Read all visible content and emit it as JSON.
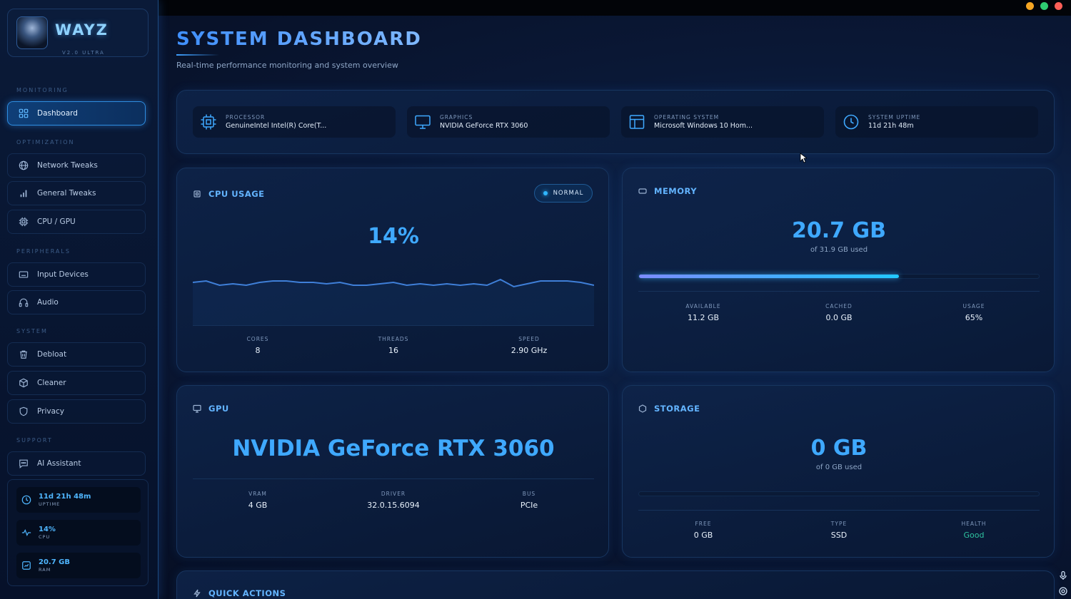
{
  "window": {
    "controls": {
      "minimize_color": "#f5a623",
      "maximize_color": "#2ecc71",
      "close_color": "#ff5f57"
    }
  },
  "brand": {
    "name": "WAYZ",
    "version": "V2.0 ULTRA",
    "accent": "#3fa9ff"
  },
  "sidebar": {
    "sections": {
      "monitoring": "MONITORING",
      "optimization": "OPTIMIZATION",
      "peripherals": "PERIPHERALS",
      "system": "SYSTEM",
      "support": "SUPPORT"
    },
    "items": [
      {
        "label": "Dashboard",
        "icon": "grid-icon",
        "active": true
      },
      {
        "label": "Network Tweaks",
        "icon": "globe-icon"
      },
      {
        "label": "General Tweaks",
        "icon": "bars-icon"
      },
      {
        "label": "CPU / GPU",
        "icon": "chip-icon"
      },
      {
        "label": "Input Devices",
        "icon": "keyboard-icon"
      },
      {
        "label": "Audio",
        "icon": "headphones-icon"
      },
      {
        "label": "Debloat",
        "icon": "trash-icon"
      },
      {
        "label": "Cleaner",
        "icon": "box-icon"
      },
      {
        "label": "Privacy",
        "icon": "shield-icon"
      },
      {
        "label": "AI Assistant",
        "icon": "chat-icon"
      }
    ],
    "stats": [
      {
        "value": "11d 21h 48m",
        "label": "UPTIME",
        "icon": "clock-icon"
      },
      {
        "value": "14%",
        "label": "CPU",
        "icon": "pulse-icon"
      },
      {
        "value": "20.7 GB",
        "label": "RAM",
        "icon": "memory-icon"
      }
    ]
  },
  "header": {
    "title": "SYSTEM DASHBOARD",
    "subtitle": "Real-time performance monitoring and system overview"
  },
  "system_info": [
    {
      "label": "PROCESSOR",
      "value": "GenuineIntel Intel(R) Core(T...",
      "icon": "chip-icon"
    },
    {
      "label": "GRAPHICS",
      "value": "NVIDIA GeForce RTX 3060",
      "icon": "monitor-icon"
    },
    {
      "label": "OPERATING SYSTEM",
      "value": "Microsoft Windows 10 Hom...",
      "icon": "window-icon"
    },
    {
      "label": "SYSTEM UPTIME",
      "value": "11d 21h 48m",
      "icon": "clock-icon"
    }
  ],
  "cpu": {
    "title": "CPU USAGE",
    "status": "NORMAL",
    "usage": "14%",
    "history": [
      10,
      11,
      8,
      9,
      8,
      10,
      11,
      11,
      10,
      10,
      9,
      10,
      8,
      8,
      9,
      10,
      8,
      9,
      8,
      9,
      8,
      9,
      8,
      12,
      7,
      9,
      11,
      11,
      11,
      10,
      8
    ],
    "metrics": [
      {
        "label": "CORES",
        "value": "8"
      },
      {
        "label": "THREADS",
        "value": "16"
      },
      {
        "label": "SPEED",
        "value": "2.90 GHz"
      }
    ]
  },
  "memory": {
    "title": "MEMORY",
    "used": "20.7 GB",
    "total_text": "of 31.9 GB used",
    "usage_fraction": 0.65,
    "metrics": [
      {
        "label": "AVAILABLE",
        "value": "11.2 GB"
      },
      {
        "label": "CACHED",
        "value": "0.0 GB"
      },
      {
        "label": "USAGE",
        "value": "65%"
      }
    ]
  },
  "gpu": {
    "title": "GPU",
    "name": "NVIDIA GeForce RTX 3060",
    "metrics": [
      {
        "label": "VRAM",
        "value": "4 GB"
      },
      {
        "label": "DRIVER",
        "value": "32.0.15.6094"
      },
      {
        "label": "BUS",
        "value": "PCIe"
      }
    ]
  },
  "storage": {
    "title": "STORAGE",
    "used": "0 GB",
    "total_text": "of 0 GB used",
    "usage_fraction": 0,
    "metrics": [
      {
        "label": "FREE",
        "value": "0 GB"
      },
      {
        "label": "TYPE",
        "value": "SSD"
      },
      {
        "label": "HEALTH",
        "value": "Good",
        "color": "#2fc3a0"
      }
    ]
  },
  "quick_actions": {
    "title": "QUICK ACTIONS"
  }
}
